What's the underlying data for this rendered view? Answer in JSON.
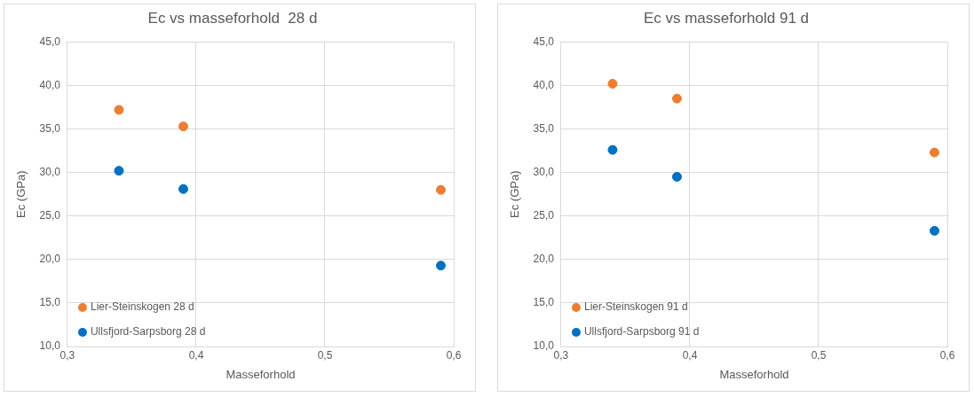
{
  "chart_data": [
    {
      "type": "scatter",
      "title": "Ec vs masseforhold  28 d",
      "xlabel": "Masseforhold",
      "ylabel": "Ec (GPa)",
      "xlim": [
        0.3,
        0.6
      ],
      "ylim": [
        10,
        45
      ],
      "xticks": [
        {
          "value": 0.3,
          "label": "0,3"
        },
        {
          "value": 0.4,
          "label": "0,4"
        },
        {
          "value": 0.5,
          "label": "0,5"
        },
        {
          "value": 0.6,
          "label": "0,6"
        }
      ],
      "yticks": [
        {
          "value": 10,
          "label": "10,0"
        },
        {
          "value": 15,
          "label": "15,0"
        },
        {
          "value": 20,
          "label": "20,0"
        },
        {
          "value": 25,
          "label": "25,0"
        },
        {
          "value": 30,
          "label": "30,0"
        },
        {
          "value": 35,
          "label": "35,0"
        },
        {
          "value": 40,
          "label": "40,0"
        },
        {
          "value": 45,
          "label": "45,0"
        }
      ],
      "grid": true,
      "legend": "bottom left",
      "marker": "circle",
      "series": [
        {
          "name": "Lier-Steinskogen 28 d",
          "color": "#ed7d31",
          "x": [
            0.34,
            0.39,
            0.59
          ],
          "values": [
            37.2,
            35.3,
            28.0
          ]
        },
        {
          "name": "Ullsfjord-Sarpsborg 28 d",
          "color": "#0070c0",
          "x": [
            0.34,
            0.39,
            0.59
          ],
          "values": [
            30.2,
            28.1,
            19.3
          ]
        }
      ]
    },
    {
      "type": "scatter",
      "title": "Ec vs masseforhold 91 d",
      "xlabel": "Masseforhold",
      "ylabel": "Ec (GPa)",
      "xlim": [
        0.3,
        0.6
      ],
      "ylim": [
        10,
        45
      ],
      "xticks": [
        {
          "value": 0.3,
          "label": "0,3"
        },
        {
          "value": 0.4,
          "label": "0,4"
        },
        {
          "value": 0.5,
          "label": "0,5"
        },
        {
          "value": 0.6,
          "label": "0,6"
        }
      ],
      "yticks": [
        {
          "value": 10,
          "label": "10,0"
        },
        {
          "value": 15,
          "label": "15,0"
        },
        {
          "value": 20,
          "label": "20,0"
        },
        {
          "value": 25,
          "label": "25,0"
        },
        {
          "value": 30,
          "label": "30,0"
        },
        {
          "value": 35,
          "label": "35,0"
        },
        {
          "value": 40,
          "label": "40,0"
        },
        {
          "value": 45,
          "label": "45,0"
        }
      ],
      "grid": true,
      "legend": "bottom left",
      "marker": "circle",
      "series": [
        {
          "name": "Lier-Steinskogen 91 d",
          "color": "#ed7d31",
          "x": [
            0.34,
            0.39,
            0.59
          ],
          "values": [
            40.2,
            38.5,
            32.3
          ]
        },
        {
          "name": "Ullsfjord-Sarpsborg 91 d",
          "color": "#0070c0",
          "x": [
            0.34,
            0.39,
            0.59
          ],
          "values": [
            32.6,
            29.5,
            23.3
          ]
        }
      ]
    }
  ]
}
